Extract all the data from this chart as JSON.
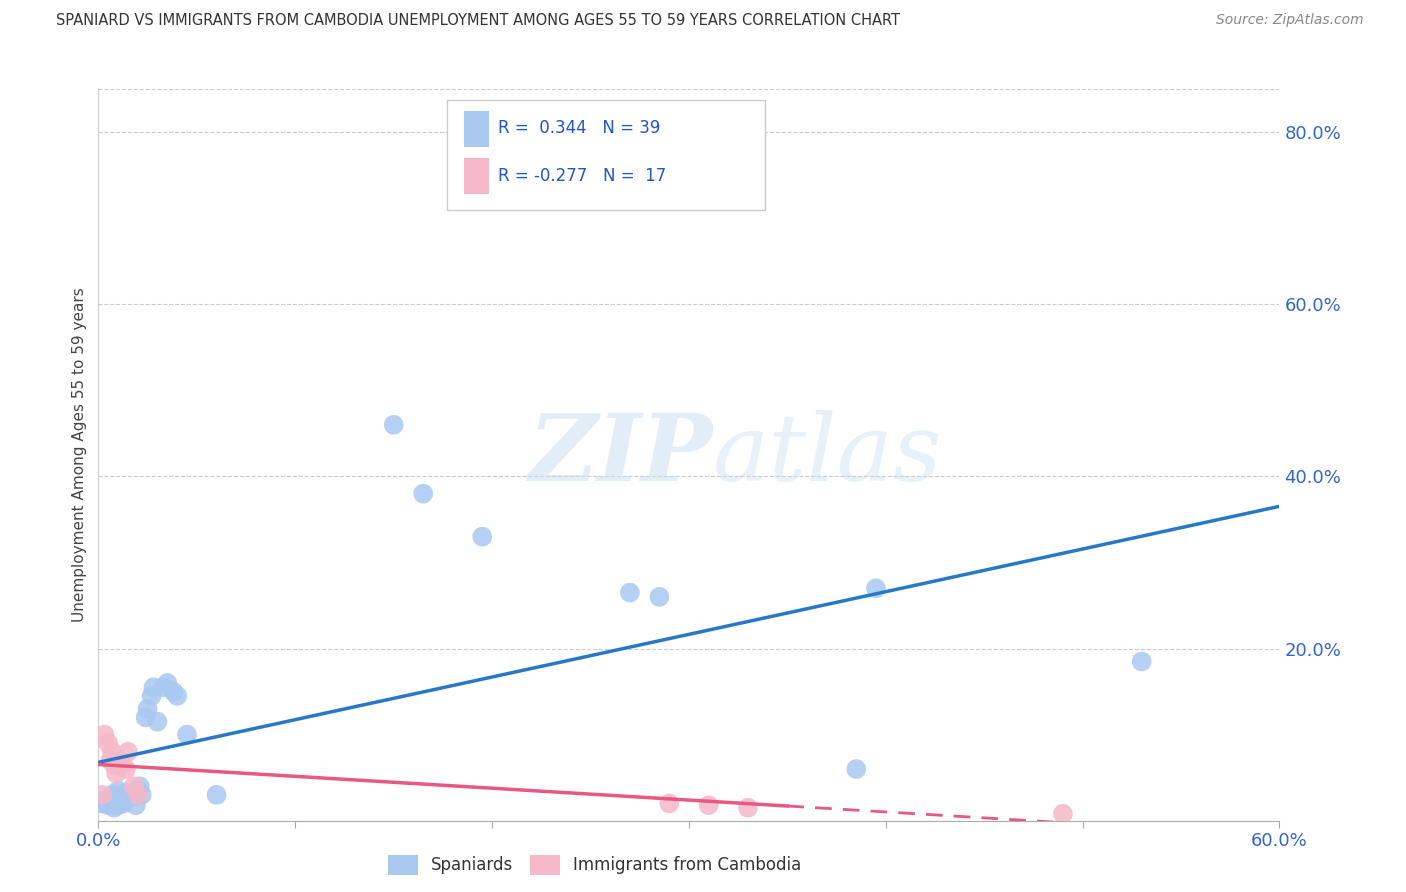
{
  "title": "SPANIARD VS IMMIGRANTS FROM CAMBODIA UNEMPLOYMENT AMONG AGES 55 TO 59 YEARS CORRELATION CHART",
  "source": "Source: ZipAtlas.com",
  "ylabel": "Unemployment Among Ages 55 to 59 years",
  "xlim": [
    0.0,
    0.6
  ],
  "ylim": [
    0.0,
    0.85
  ],
  "xticks": [
    0.0,
    0.1,
    0.2,
    0.3,
    0.4,
    0.5,
    0.6
  ],
  "yticks": [
    0.0,
    0.2,
    0.4,
    0.6,
    0.8
  ],
  "r_spaniards": 0.344,
  "n_spaniards": 39,
  "r_cambodia": -0.277,
  "n_cambodia": 17,
  "color_spaniards": "#a8c8f0",
  "color_cambodia": "#f5b8c8",
  "line_color_spaniards": "#2878c8",
  "line_color_cambodia": "#e85880",
  "watermark_zip": "ZIP",
  "watermark_atlas": "atlas",
  "spaniards_x": [
    0.002,
    0.004,
    0.005,
    0.006,
    0.007,
    0.008,
    0.009,
    0.01,
    0.01,
    0.011,
    0.012,
    0.013,
    0.014,
    0.015,
    0.016,
    0.018,
    0.019,
    0.02,
    0.021,
    0.022,
    0.024,
    0.025,
    0.027,
    0.028,
    0.03,
    0.033,
    0.035,
    0.038,
    0.04,
    0.045,
    0.06,
    0.15,
    0.165,
    0.195,
    0.27,
    0.285,
    0.385,
    0.395,
    0.53
  ],
  "spaniards_y": [
    0.02,
    0.025,
    0.018,
    0.022,
    0.03,
    0.015,
    0.025,
    0.018,
    0.035,
    0.022,
    0.028,
    0.02,
    0.032,
    0.025,
    0.03,
    0.028,
    0.018,
    0.035,
    0.04,
    0.03,
    0.12,
    0.13,
    0.145,
    0.155,
    0.115,
    0.155,
    0.16,
    0.15,
    0.145,
    0.1,
    0.03,
    0.46,
    0.38,
    0.33,
    0.265,
    0.26,
    0.06,
    0.27,
    0.185
  ],
  "cambodia_x": [
    0.002,
    0.003,
    0.005,
    0.006,
    0.007,
    0.008,
    0.009,
    0.01,
    0.012,
    0.014,
    0.015,
    0.018,
    0.02,
    0.29,
    0.31,
    0.33,
    0.49
  ],
  "cambodia_y": [
    0.03,
    0.1,
    0.09,
    0.07,
    0.08,
    0.065,
    0.055,
    0.07,
    0.065,
    0.06,
    0.08,
    0.04,
    0.03,
    0.02,
    0.018,
    0.015,
    0.008
  ]
}
